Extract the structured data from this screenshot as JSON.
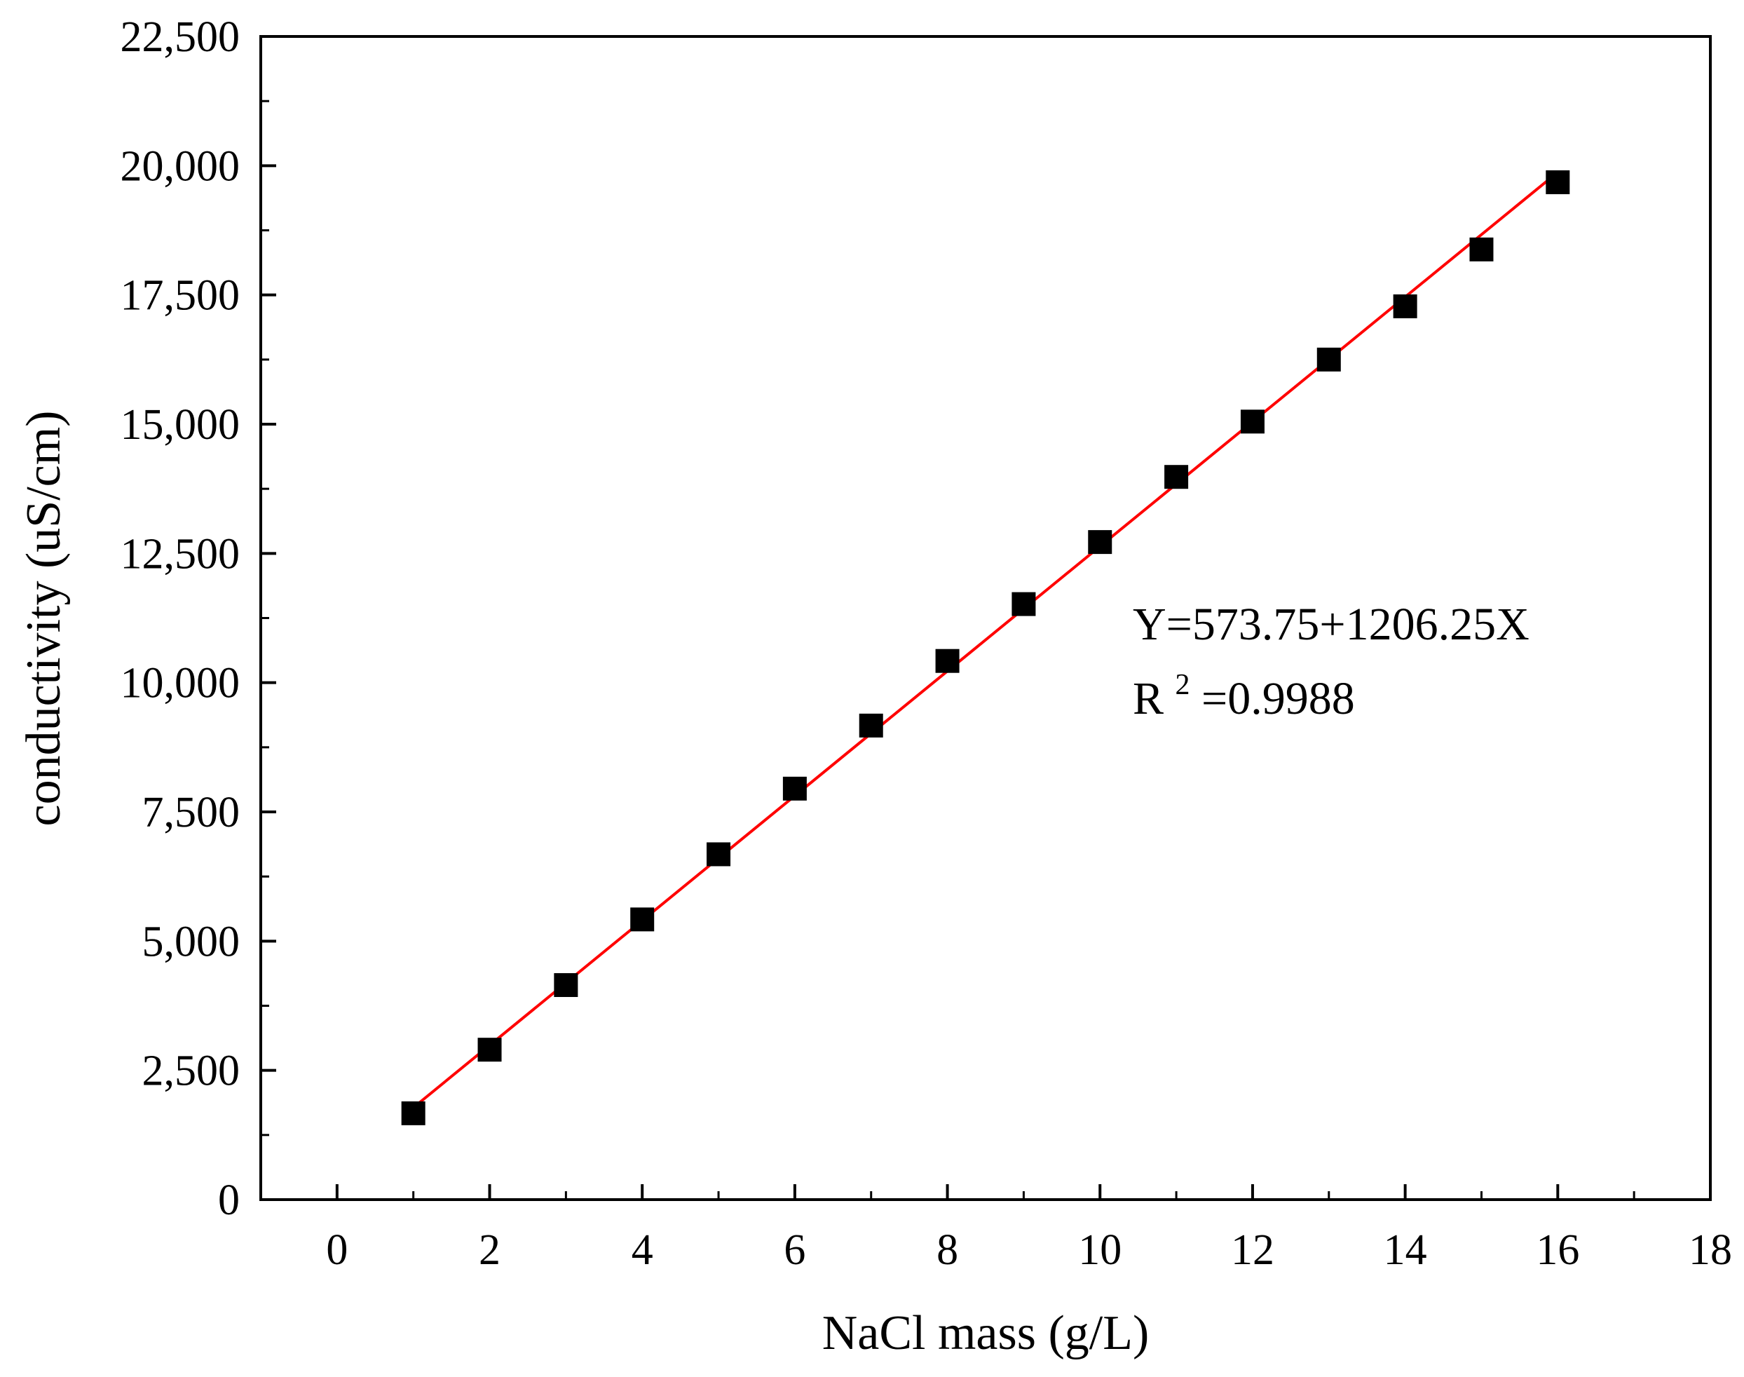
{
  "chart_data": {
    "type": "scatter",
    "title": "",
    "xlabel": "NaCl mass (g/L)",
    "ylabel": "conductivity (uS/cm)",
    "xlim": [
      -1,
      18
    ],
    "ylim": [
      0,
      22500
    ],
    "x_ticks": [
      0,
      2,
      4,
      6,
      8,
      10,
      12,
      14,
      16,
      18
    ],
    "x_tick_labels": [
      "0",
      "2",
      "4",
      "6",
      "8",
      "10",
      "12",
      "14",
      "16",
      "18"
    ],
    "y_ticks": [
      0,
      2500,
      5000,
      7500,
      10000,
      12500,
      15000,
      17500,
      20000,
      22500
    ],
    "y_tick_labels": [
      "0",
      "2,500",
      "5,000",
      "7,500",
      "10,000",
      "12,500",
      "15,000",
      "17,500",
      "20,000",
      "22,500"
    ],
    "grid": false,
    "series": [
      {
        "marker": "square",
        "color": "#000000",
        "x": [
          1,
          2,
          3,
          4,
          5,
          6,
          7,
          8,
          9,
          10,
          11,
          12,
          13,
          14,
          15,
          16
        ],
        "y": [
          1670,
          2900,
          4150,
          5420,
          6680,
          7950,
          9170,
          10420,
          11520,
          12720,
          13980,
          15050,
          16250,
          17280,
          18380,
          19680
        ]
      }
    ],
    "fit": {
      "color": "#ff0000",
      "intercept": 573.75,
      "slope": 1206.25,
      "x_range": [
        1,
        16
      ]
    },
    "annotation": {
      "equation": "Y=573.75+1206.25X",
      "r2_base": "R",
      "r2_exp": "2",
      "r2_value": "=0.9988"
    }
  }
}
